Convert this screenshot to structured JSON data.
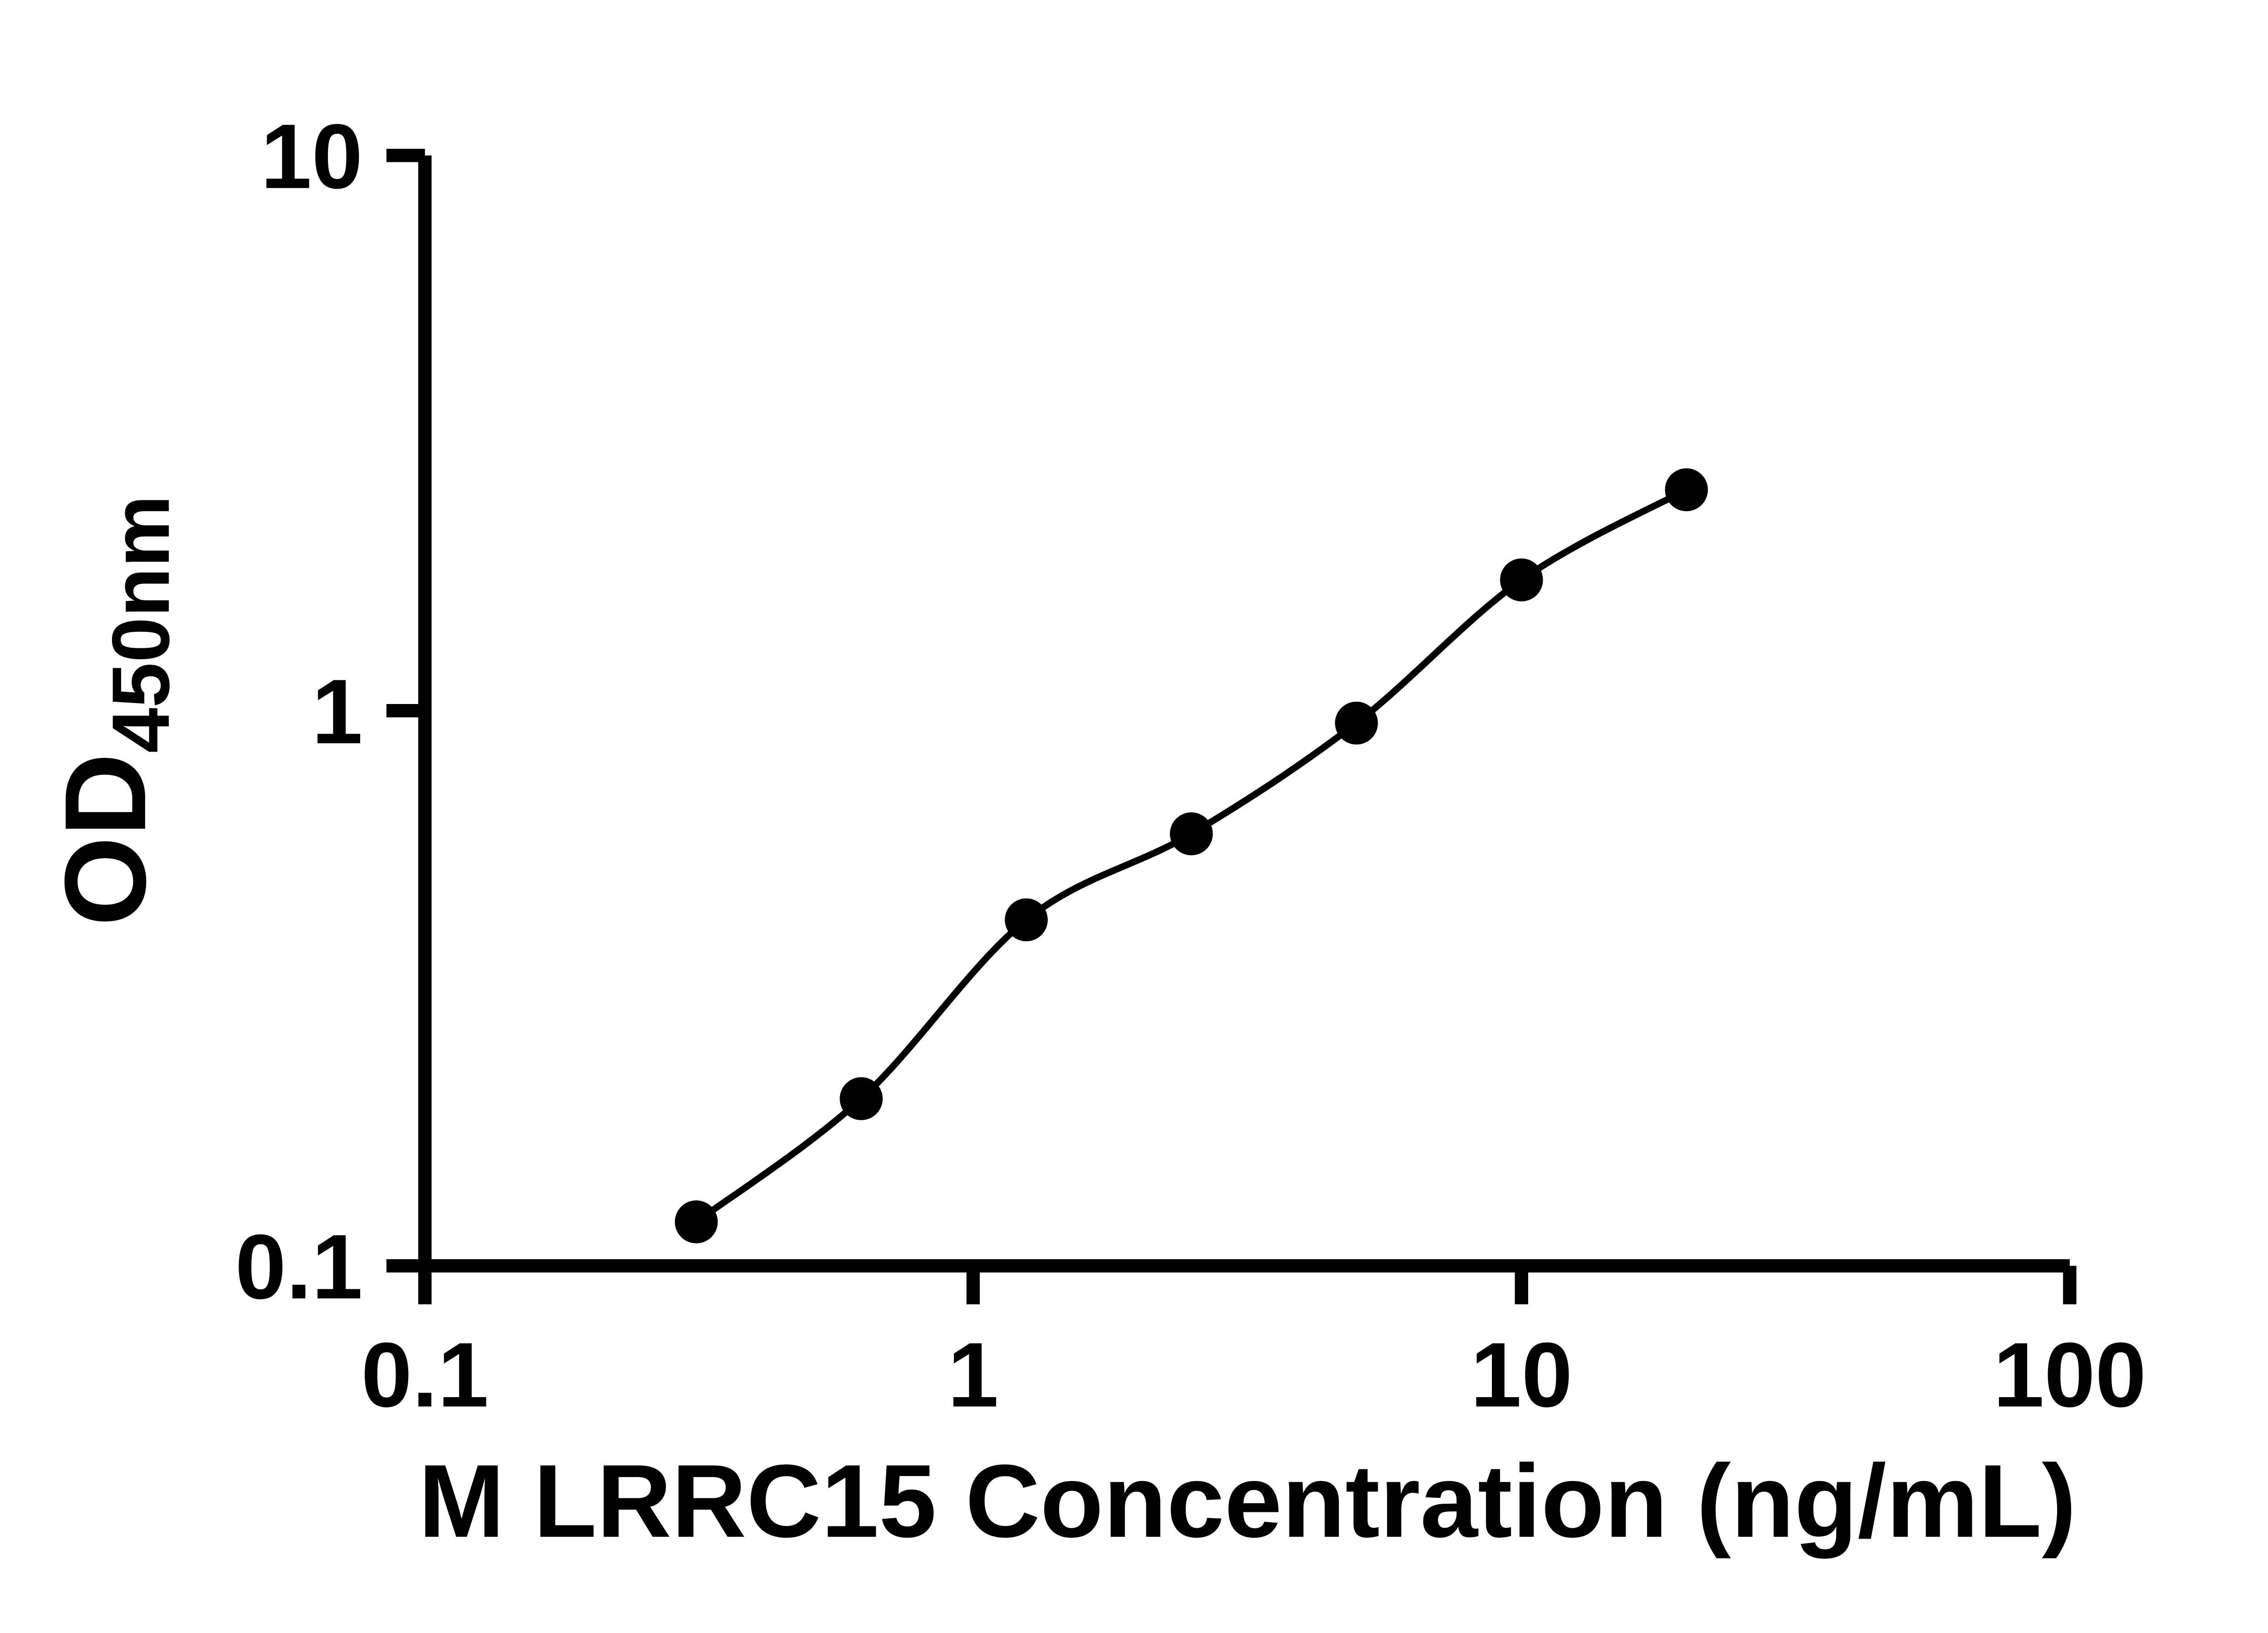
{
  "chart_data": {
    "type": "scatter",
    "title": "",
    "xlabel": "M LRRC15 Concentration (ng/mL)",
    "ylabel_main": "OD",
    "ylabel_sub": "450nm",
    "xscale": "log",
    "yscale": "log",
    "xlim": [
      0.1,
      100
    ],
    "ylim": [
      0.1,
      10
    ],
    "grid": false,
    "legend": false,
    "x_ticks": [
      {
        "value": 0.1,
        "label": "0.1"
      },
      {
        "value": 1,
        "label": "1"
      },
      {
        "value": 10,
        "label": "10"
      },
      {
        "value": 100,
        "label": "100"
      }
    ],
    "y_ticks": [
      {
        "value": 0.1,
        "label": "0.1"
      },
      {
        "value": 1,
        "label": "1"
      },
      {
        "value": 10,
        "label": "10"
      }
    ],
    "series": [
      {
        "name": "standard-curve",
        "marker": "circle",
        "color": "#000000",
        "fit_curve": true,
        "points": [
          {
            "x": 0.3125,
            "y": 0.12
          },
          {
            "x": 0.625,
            "y": 0.2
          },
          {
            "x": 1.25,
            "y": 0.42
          },
          {
            "x": 2.5,
            "y": 0.6
          },
          {
            "x": 5,
            "y": 0.95
          },
          {
            "x": 10,
            "y": 1.72
          },
          {
            "x": 20,
            "y": 2.5
          }
        ]
      }
    ]
  },
  "colors": {
    "axis": "#000000",
    "marker": "#000000",
    "curve": "#000000",
    "background": "#ffffff"
  }
}
